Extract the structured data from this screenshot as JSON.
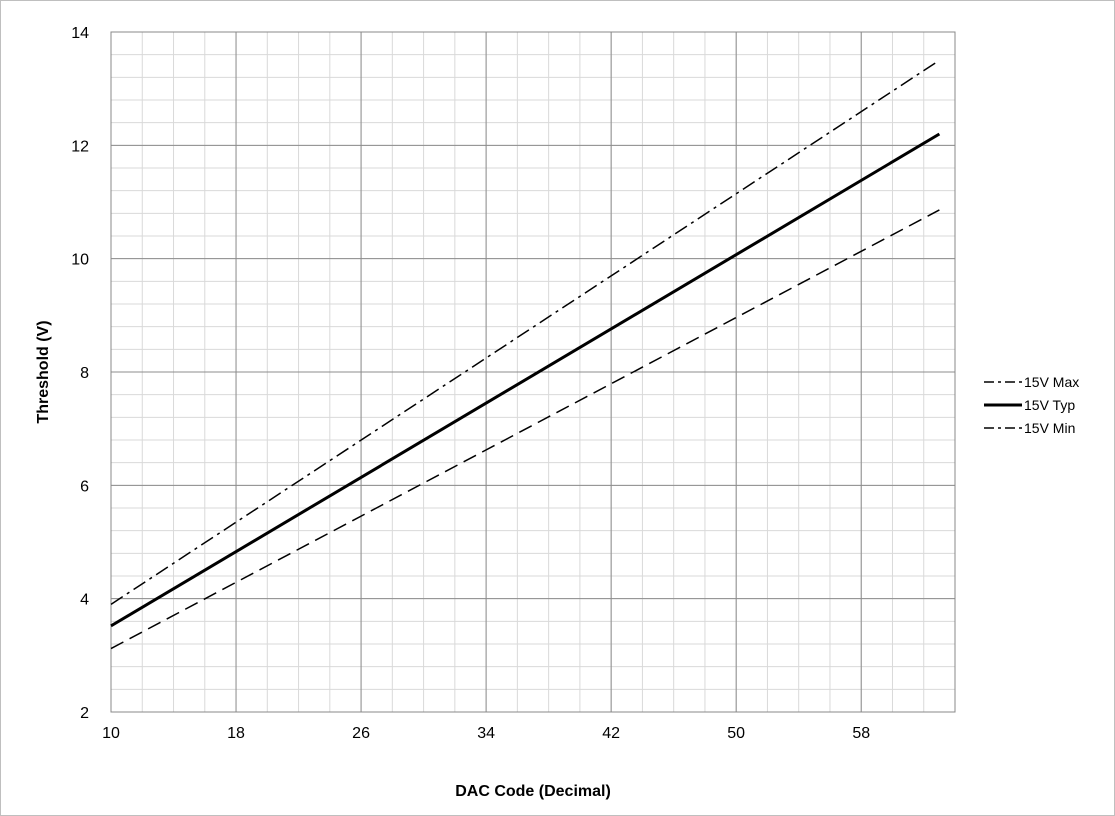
{
  "chart_data": {
    "type": "line",
    "xlabel": "DAC Code (Decimal)",
    "ylabel": "Threshold (V)",
    "xlim": [
      10,
      64
    ],
    "ylim": [
      2,
      14
    ],
    "x_ticks": [
      "10",
      "18",
      "26",
      "34",
      "42",
      "50",
      "58"
    ],
    "y_ticks": [
      "2",
      "4",
      "6",
      "8",
      "10",
      "12",
      "14"
    ],
    "grid": true,
    "legend_position": "right",
    "series": [
      {
        "name": "15V Max",
        "dash": "dash-dot",
        "x": [
          10,
          63
        ],
        "y": [
          3.9,
          13.5
        ]
      },
      {
        "name": "15V Typ",
        "dash": "solid",
        "x": [
          10,
          63
        ],
        "y": [
          3.52,
          12.2
        ]
      },
      {
        "name": "15V Min",
        "dash": "dashed",
        "x": [
          10,
          63
        ],
        "y": [
          3.12,
          10.86
        ]
      }
    ]
  }
}
